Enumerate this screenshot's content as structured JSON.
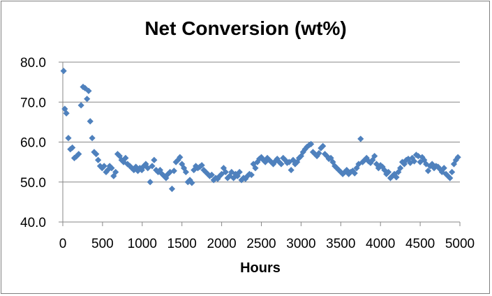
{
  "chart_data": {
    "type": "scatter",
    "title": "Net Conversion (wt%)",
    "xlabel": "Hours",
    "ylabel": "",
    "xlim": [
      0,
      5000
    ],
    "ylim": [
      40,
      80
    ],
    "x_ticks": [
      0,
      500,
      1000,
      1500,
      2000,
      2500,
      3000,
      3500,
      4000,
      4500,
      5000
    ],
    "x_tick_labels": [
      "0",
      "500",
      "1000",
      "1500",
      "2000",
      "2500",
      "3000",
      "3500",
      "4000",
      "4500",
      "5000"
    ],
    "y_ticks": [
      40,
      50,
      60,
      70,
      80
    ],
    "y_tick_labels": [
      "40.0",
      "50.0",
      "60.0",
      "70.0",
      "80.0"
    ],
    "grid": "horizontal",
    "legend": "none",
    "marker": "diamond",
    "marker_color": "#4f81bd",
    "series": [
      {
        "points": [
          [
            10,
            77.8
          ],
          [
            25,
            68.3
          ],
          [
            45,
            67.2
          ],
          [
            70,
            61.0
          ],
          [
            95,
            58.2
          ],
          [
            120,
            58.6
          ],
          [
            145,
            56.0
          ],
          [
            170,
            56.4
          ],
          [
            200,
            57.0
          ],
          [
            230,
            69.2
          ],
          [
            255,
            73.8
          ],
          [
            280,
            73.5
          ],
          [
            305,
            70.8
          ],
          [
            325,
            72.8
          ],
          [
            345,
            65.2
          ],
          [
            370,
            61.0
          ],
          [
            395,
            57.5
          ],
          [
            420,
            57.0
          ],
          [
            445,
            55.5
          ],
          [
            470,
            54.0
          ],
          [
            495,
            53.5
          ],
          [
            520,
            54.0
          ],
          [
            545,
            52.5
          ],
          [
            565,
            53.0
          ],
          [
            590,
            54.0
          ],
          [
            615,
            53.5
          ],
          [
            640,
            51.5
          ],
          [
            665,
            52.5
          ],
          [
            690,
            57.0
          ],
          [
            715,
            56.5
          ],
          [
            740,
            55.5
          ],
          [
            765,
            55.0
          ],
          [
            790,
            56.0
          ],
          [
            815,
            54.5
          ],
          [
            845,
            54.0
          ],
          [
            870,
            53.5
          ],
          [
            895,
            53.0
          ],
          [
            920,
            53.8
          ],
          [
            945,
            52.8
          ],
          [
            970,
            53.5
          ],
          [
            995,
            53.0
          ],
          [
            1020,
            54.0
          ],
          [
            1045,
            54.5
          ],
          [
            1070,
            53.5
          ],
          [
            1100,
            50.0
          ],
          [
            1125,
            54.0
          ],
          [
            1150,
            55.5
          ],
          [
            1175,
            53.0
          ],
          [
            1200,
            52.5
          ],
          [
            1225,
            53.0
          ],
          [
            1250,
            52.0
          ],
          [
            1275,
            51.5
          ],
          [
            1300,
            51.0
          ],
          [
            1325,
            52.0
          ],
          [
            1350,
            52.5
          ],
          [
            1375,
            48.3
          ],
          [
            1400,
            52.8
          ],
          [
            1425,
            55.0
          ],
          [
            1450,
            55.5
          ],
          [
            1475,
            56.2
          ],
          [
            1500,
            54.5
          ],
          [
            1525,
            53.5
          ],
          [
            1550,
            52.5
          ],
          [
            1575,
            50.0
          ],
          [
            1600,
            50.5
          ],
          [
            1625,
            49.8
          ],
          [
            1650,
            53.0
          ],
          [
            1675,
            54.0
          ],
          [
            1700,
            53.5
          ],
          [
            1725,
            53.8
          ],
          [
            1750,
            54.2
          ],
          [
            1775,
            53.0
          ],
          [
            1800,
            52.5
          ],
          [
            1825,
            52.0
          ],
          [
            1850,
            51.5
          ],
          [
            1875,
            51.8
          ],
          [
            1900,
            50.5
          ],
          [
            1925,
            51.0
          ],
          [
            1950,
            50.8
          ],
          [
            1975,
            51.5
          ],
          [
            2000,
            52.0
          ],
          [
            2025,
            53.5
          ],
          [
            2050,
            52.5
          ],
          [
            2075,
            51.0
          ],
          [
            2100,
            51.5
          ],
          [
            2125,
            52.5
          ],
          [
            2150,
            51.0
          ],
          [
            2175,
            52.0
          ],
          [
            2200,
            51.5
          ],
          [
            2225,
            52.5
          ],
          [
            2250,
            50.5
          ],
          [
            2275,
            51.0
          ],
          [
            2300,
            50.8
          ],
          [
            2325,
            51.5
          ],
          [
            2350,
            52.0
          ],
          [
            2375,
            51.8
          ],
          [
            2400,
            54.5
          ],
          [
            2425,
            53.5
          ],
          [
            2450,
            55.0
          ],
          [
            2475,
            55.8
          ],
          [
            2500,
            56.2
          ],
          [
            2525,
            55.5
          ],
          [
            2550,
            55.0
          ],
          [
            2575,
            56.0
          ],
          [
            2600,
            55.5
          ],
          [
            2625,
            55.0
          ],
          [
            2650,
            54.5
          ],
          [
            2675,
            55.2
          ],
          [
            2700,
            55.8
          ],
          [
            2725,
            55.0
          ],
          [
            2750,
            54.5
          ],
          [
            2775,
            56.0
          ],
          [
            2800,
            55.5
          ],
          [
            2825,
            54.8
          ],
          [
            2850,
            55.0
          ],
          [
            2875,
            53.0
          ],
          [
            2900,
            55.5
          ],
          [
            2925,
            54.5
          ],
          [
            2950,
            55.0
          ],
          [
            2975,
            56.0
          ],
          [
            3000,
            56.5
          ],
          [
            3025,
            57.5
          ],
          [
            3050,
            58.2
          ],
          [
            3075,
            58.8
          ],
          [
            3100,
            59.2
          ],
          [
            3125,
            59.5
          ],
          [
            3150,
            57.5
          ],
          [
            3175,
            57.0
          ],
          [
            3200,
            56.5
          ],
          [
            3225,
            57.2
          ],
          [
            3250,
            58.5
          ],
          [
            3275,
            59.0
          ],
          [
            3300,
            57.0
          ],
          [
            3325,
            56.5
          ],
          [
            3350,
            55.8
          ],
          [
            3375,
            56.0
          ],
          [
            3400,
            55.0
          ],
          [
            3425,
            54.0
          ],
          [
            3450,
            53.5
          ],
          [
            3475,
            53.0
          ],
          [
            3500,
            52.5
          ],
          [
            3525,
            52.0
          ],
          [
            3550,
            52.5
          ],
          [
            3575,
            53.0
          ],
          [
            3600,
            52.0
          ],
          [
            3625,
            52.5
          ],
          [
            3650,
            52.8
          ],
          [
            3675,
            52.2
          ],
          [
            3700,
            53.5
          ],
          [
            3725,
            54.5
          ],
          [
            3750,
            60.8
          ],
          [
            3775,
            55.0
          ],
          [
            3800,
            55.5
          ],
          [
            3825,
            56.0
          ],
          [
            3850,
            55.2
          ],
          [
            3875,
            54.8
          ],
          [
            3900,
            55.5
          ],
          [
            3925,
            56.5
          ],
          [
            3950,
            54.5
          ],
          [
            3975,
            53.5
          ],
          [
            4000,
            54.2
          ],
          [
            4025,
            53.8
          ],
          [
            4050,
            53.0
          ],
          [
            4075,
            52.0
          ],
          [
            4100,
            52.5
          ],
          [
            4125,
            51.0
          ],
          [
            4150,
            51.5
          ],
          [
            4175,
            52.0
          ],
          [
            4200,
            51.2
          ],
          [
            4225,
            52.5
          ],
          [
            4250,
            53.5
          ],
          [
            4275,
            55.0
          ],
          [
            4300,
            54.5
          ],
          [
            4325,
            55.5
          ],
          [
            4350,
            55.8
          ],
          [
            4375,
            54.8
          ],
          [
            4400,
            56.0
          ],
          [
            4425,
            55.2
          ],
          [
            4450,
            56.8
          ],
          [
            4475,
            56.5
          ],
          [
            4500,
            55.0
          ],
          [
            4525,
            56.2
          ],
          [
            4550,
            55.5
          ],
          [
            4575,
            54.5
          ],
          [
            4600,
            52.8
          ],
          [
            4625,
            54.0
          ],
          [
            4650,
            54.5
          ],
          [
            4675,
            53.5
          ],
          [
            4700,
            54.0
          ],
          [
            4725,
            53.8
          ],
          [
            4750,
            53.2
          ],
          [
            4775,
            52.5
          ],
          [
            4800,
            53.5
          ],
          [
            4825,
            52.0
          ],
          [
            4850,
            51.5
          ],
          [
            4875,
            51.0
          ],
          [
            4900,
            52.5
          ],
          [
            4925,
            54.5
          ],
          [
            4950,
            55.5
          ],
          [
            4975,
            56.2
          ]
        ]
      }
    ]
  }
}
